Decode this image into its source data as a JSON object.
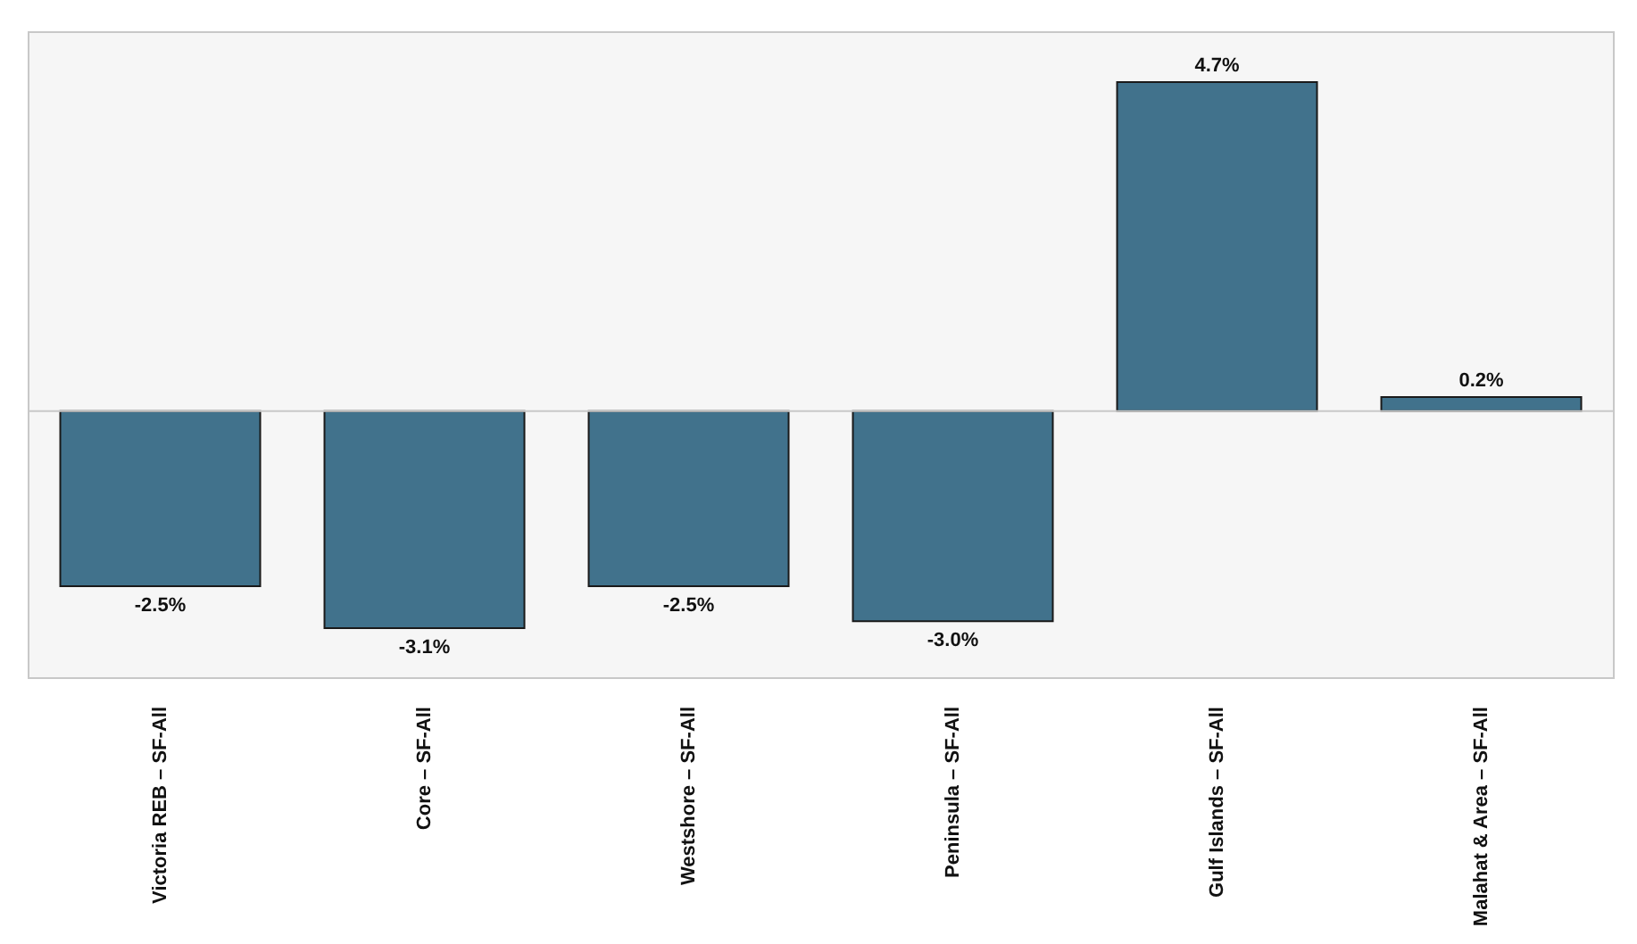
{
  "chart_data": {
    "type": "bar",
    "categories": [
      "Victoria REB – SF-All",
      "Core – SF-All",
      "Westshore – SF-All",
      "Peninsula – SF-All",
      "Gulf Islands – SF-All",
      "Malahat & Area – SF-All"
    ],
    "values": [
      -2.5,
      -3.1,
      -2.5,
      -3.0,
      4.7,
      0.2
    ],
    "value_labels": [
      "-2.5%",
      "-3.1%",
      "-2.5%",
      "-3.0%",
      "4.7%",
      "0.2%"
    ],
    "color": "#41728c"
  }
}
